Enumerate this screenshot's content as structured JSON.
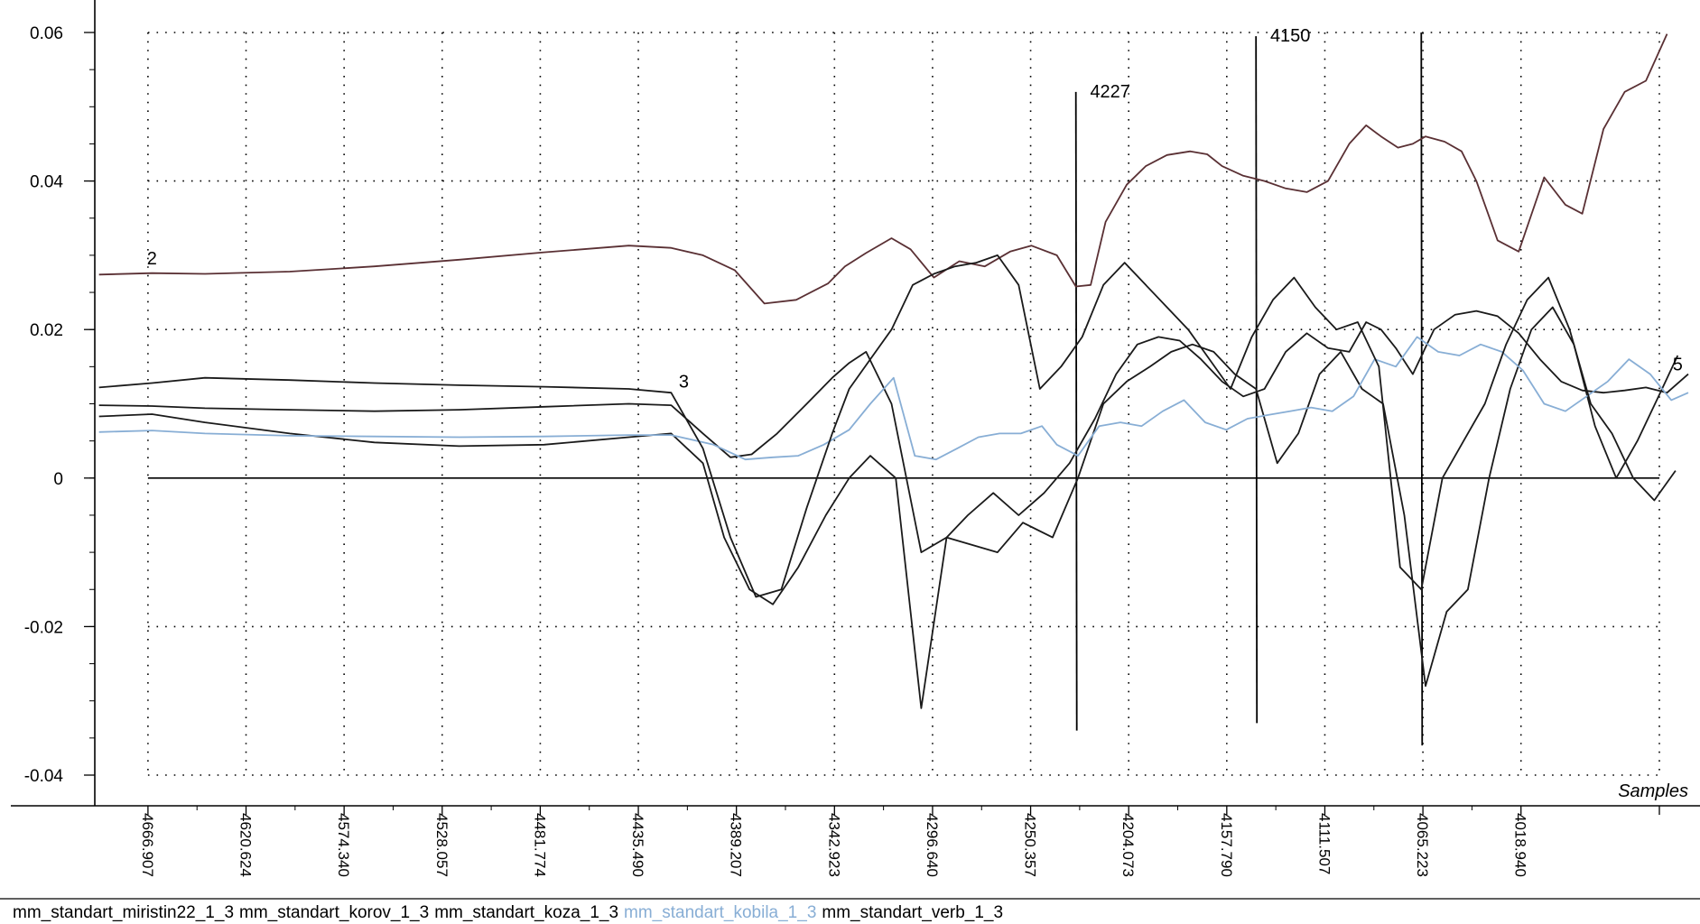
{
  "chart_data": {
    "type": "line",
    "xlabel": "Samples",
    "ylim": [
      -0.04,
      0.06
    ],
    "yticks": [
      {
        "value": 0.06,
        "label": "0.06"
      },
      {
        "value": 0.04,
        "label": "0.04"
      },
      {
        "value": 0.02,
        "label": "0.02"
      },
      {
        "value": 0,
        "label": "0"
      },
      {
        "value": -0.02,
        "label": "-0.02"
      },
      {
        "value": -0.04,
        "label": "-0.04"
      }
    ],
    "xlim": [
      4692,
      3940
    ],
    "x_reversed": true,
    "xticks": [
      {
        "value": 4666.907,
        "label": "4666.907"
      },
      {
        "value": 4620.624,
        "label": "4620.624"
      },
      {
        "value": 4574.34,
        "label": "4574.340"
      },
      {
        "value": 4528.057,
        "label": "4528.057"
      },
      {
        "value": 4481.774,
        "label": "4481.774"
      },
      {
        "value": 4435.49,
        "label": "4435.490"
      },
      {
        "value": 4389.207,
        "label": "4389.207"
      },
      {
        "value": 4342.923,
        "label": "4342.923"
      },
      {
        "value": 4296.64,
        "label": "4296.640"
      },
      {
        "value": 4250.357,
        "label": "4250.357"
      },
      {
        "value": 4204.073,
        "label": "4204.073"
      },
      {
        "value": 4157.79,
        "label": "4157.790"
      },
      {
        "value": 4111.507,
        "label": "4111.507"
      },
      {
        "value": 4065.223,
        "label": "4065.223"
      },
      {
        "value": 4018.94,
        "label": "4018.940"
      }
    ],
    "grid": true,
    "legend_placement": "bottom",
    "annotations": [
      {
        "text": "4227",
        "x": 4229,
        "y": 0.052,
        "type": "marker-line",
        "y_from": -0.034,
        "y_to": 0.052
      },
      {
        "text": "4150",
        "x": 4144,
        "y": 0.0595,
        "type": "marker-line",
        "y_from": -0.033,
        "y_to": 0.0595
      },
      {
        "text": "",
        "x": 4066,
        "y": 0.06,
        "type": "marker-line",
        "y_from": -0.036,
        "y_to": 0.06
      },
      {
        "text": "2",
        "x": 4665,
        "y": 0.0288,
        "type": "label"
      },
      {
        "text": "3",
        "x": 4414,
        "y": 0.0122,
        "type": "label"
      },
      {
        "text": "5",
        "x": 3945,
        "y": 0.0145,
        "type": "label"
      }
    ],
    "series": [
      {
        "name": "mm_standart_miristin22_1_3",
        "color": "#5a3034",
        "x": [
          4690,
          4665,
          4640,
          4600,
          4560,
          4520,
          4480,
          4440,
          4420,
          4405,
          4390,
          4376,
          4361,
          4346,
          4338,
          4328,
          4316,
          4307,
          4296,
          4284,
          4272,
          4260,
          4250,
          4238,
          4229,
          4222,
          4215,
          4205,
          4196,
          4186,
          4175,
          4167,
          4160,
          4150,
          4140,
          4130,
          4120,
          4110,
          4100,
          4092,
          4085,
          4077,
          4070,
          4064,
          4055,
          4047,
          4040,
          4030,
          4020,
          4008,
          3998,
          3990,
          3980,
          3970,
          3960,
          3950
        ],
        "y": [
          0.0274,
          0.0276,
          0.0275,
          0.0278,
          0.0285,
          0.0294,
          0.0304,
          0.0313,
          0.031,
          0.03,
          0.028,
          0.0235,
          0.024,
          0.0262,
          0.0285,
          0.0303,
          0.0323,
          0.0308,
          0.027,
          0.0292,
          0.0285,
          0.0305,
          0.0313,
          0.03,
          0.0258,
          0.026,
          0.0345,
          0.0395,
          0.042,
          0.0435,
          0.044,
          0.0436,
          0.042,
          0.0407,
          0.04,
          0.039,
          0.0385,
          0.04,
          0.045,
          0.0475,
          0.046,
          0.0445,
          0.045,
          0.046,
          0.0453,
          0.044,
          0.04,
          0.032,
          0.0305,
          0.0405,
          0.0368,
          0.0356,
          0.047,
          0.052,
          0.0535,
          0.0598
        ]
      },
      {
        "name": "mm_standart_korov_1_3",
        "color": "#1a1a1a",
        "x": [
          4690,
          4665,
          4640,
          4600,
          4560,
          4520,
          4480,
          4440,
          4420,
          4405,
          4392,
          4382,
          4370,
          4356,
          4344,
          4336,
          4328,
          4316,
          4302,
          4290,
          4280,
          4268,
          4256,
          4244,
          4232,
          4220,
          4210,
          4200,
          4190,
          4180,
          4170,
          4160,
          4150,
          4140,
          4130,
          4120,
          4110,
          4100,
          4092,
          4085,
          4078,
          4070,
          4060,
          4050,
          4040,
          4030,
          4020,
          4010,
          4000,
          3990,
          3980,
          3970,
          3960,
          3950,
          3940
        ],
        "y": [
          0.0098,
          0.0097,
          0.0094,
          0.0092,
          0.009,
          0.0092,
          0.0096,
          0.01,
          0.0098,
          0.006,
          0.0028,
          0.0032,
          0.006,
          0.01,
          0.0135,
          0.0155,
          0.017,
          0.01,
          -0.01,
          -0.008,
          -0.005,
          -0.002,
          -0.005,
          -0.002,
          0.002,
          0.008,
          0.014,
          0.018,
          0.019,
          0.0185,
          0.016,
          0.013,
          0.011,
          0.012,
          0.017,
          0.0195,
          0.0175,
          0.017,
          0.021,
          0.02,
          0.0175,
          0.014,
          0.02,
          0.022,
          0.0225,
          0.0218,
          0.0195,
          0.016,
          0.013,
          0.0118,
          0.0115,
          0.0118,
          0.0122,
          0.0115,
          0.014
        ]
      },
      {
        "name": "mm_standart_koza_1_3",
        "color": "#1a1a1a",
        "x": [
          4690,
          4665,
          4640,
          4600,
          4560,
          4520,
          4480,
          4440,
          4420,
          4405,
          4395,
          4383,
          4372,
          4360,
          4347,
          4336,
          4326,
          4314,
          4302,
          4290,
          4278,
          4266,
          4254,
          4240,
          4228,
          4216,
          4205,
          4194,
          4184,
          4174,
          4164,
          4154,
          4144,
          4134,
          4124,
          4114,
          4104,
          4094,
          4084,
          4074,
          4064,
          4054,
          4044,
          4034,
          4024,
          4014,
          4004,
          3994,
          3984,
          3974,
          3964,
          3954,
          3945
        ],
        "y": [
          0.0083,
          0.0086,
          0.0075,
          0.006,
          0.0048,
          0.0043,
          0.0045,
          0.0055,
          0.006,
          0.002,
          -0.008,
          -0.015,
          -0.017,
          -0.012,
          -0.005,
          0.0,
          0.003,
          0.0,
          -0.031,
          -0.008,
          -0.009,
          -0.01,
          -0.006,
          -0.008,
          0.0,
          0.01,
          0.013,
          0.015,
          0.017,
          0.018,
          0.017,
          0.014,
          0.012,
          0.002,
          0.006,
          0.014,
          0.017,
          0.012,
          0.01,
          -0.005,
          -0.028,
          -0.018,
          -0.015,
          0.0,
          0.012,
          0.02,
          0.023,
          0.018,
          0.007,
          0.0,
          0.005,
          0.011,
          0.0165
        ]
      },
      {
        "name": "mm_standart_kobila_1_3",
        "color": "#88aed5",
        "x": [
          4690,
          4665,
          4640,
          4600,
          4560,
          4520,
          4480,
          4440,
          4420,
          4400,
          4385,
          4372,
          4360,
          4348,
          4336,
          4326,
          4315,
          4305,
          4295,
          4285,
          4275,
          4265,
          4255,
          4245,
          4238,
          4228,
          4218,
          4208,
          4198,
          4188,
          4178,
          4168,
          4158,
          4148,
          4138,
          4128,
          4118,
          4108,
          4098,
          4088,
          4078,
          4068,
          4058,
          4048,
          4038,
          4028,
          4018,
          4008,
          3998,
          3988,
          3978,
          3968,
          3958,
          3948,
          3940
        ],
        "y": [
          0.0062,
          0.0064,
          0.006,
          0.0057,
          0.0056,
          0.0055,
          0.0056,
          0.0058,
          0.0058,
          0.0045,
          0.0025,
          0.0028,
          0.003,
          0.0045,
          0.0065,
          0.01,
          0.0135,
          0.003,
          0.0025,
          0.004,
          0.0055,
          0.006,
          0.006,
          0.007,
          0.0045,
          0.003,
          0.007,
          0.0075,
          0.007,
          0.009,
          0.0105,
          0.0075,
          0.0065,
          0.008,
          0.0085,
          0.009,
          0.0095,
          0.009,
          0.011,
          0.016,
          0.015,
          0.019,
          0.017,
          0.0165,
          0.018,
          0.017,
          0.0145,
          0.01,
          0.009,
          0.011,
          0.013,
          0.016,
          0.014,
          0.0105,
          0.0115
        ]
      },
      {
        "name": "mm_standart_verb_1_3",
        "color": "#1a1a1a",
        "x": [
          4690,
          4665,
          4640,
          4600,
          4560,
          4520,
          4480,
          4440,
          4420,
          4405,
          4392,
          4380,
          4368,
          4356,
          4344,
          4336,
          4326,
          4316,
          4306,
          4296,
          4286,
          4276,
          4266,
          4256,
          4246,
          4236,
          4226,
          4216,
          4206,
          4196,
          4186,
          4176,
          4166,
          4156,
          4146,
          4136,
          4126,
          4116,
          4106,
          4096,
          4086,
          4076,
          4066,
          4056,
          4046,
          4036,
          4026,
          4016,
          4006,
          3996,
          3986,
          3976,
          3966,
          3956,
          3946
        ],
        "y": [
          0.0122,
          0.0128,
          0.0135,
          0.0132,
          0.0128,
          0.0125,
          0.0123,
          0.012,
          0.0115,
          0.004,
          -0.008,
          -0.016,
          -0.015,
          -0.004,
          0.006,
          0.012,
          0.016,
          0.02,
          0.026,
          0.0275,
          0.0285,
          0.029,
          0.03,
          0.026,
          0.012,
          0.015,
          0.019,
          0.026,
          0.029,
          0.026,
          0.023,
          0.02,
          0.016,
          0.012,
          0.019,
          0.024,
          0.027,
          0.023,
          0.02,
          0.021,
          0.015,
          -0.012,
          -0.015,
          0.0,
          0.005,
          0.01,
          0.018,
          0.024,
          0.027,
          0.02,
          0.01,
          0.006,
          0.0,
          -0.003,
          0.001
        ]
      }
    ]
  }
}
